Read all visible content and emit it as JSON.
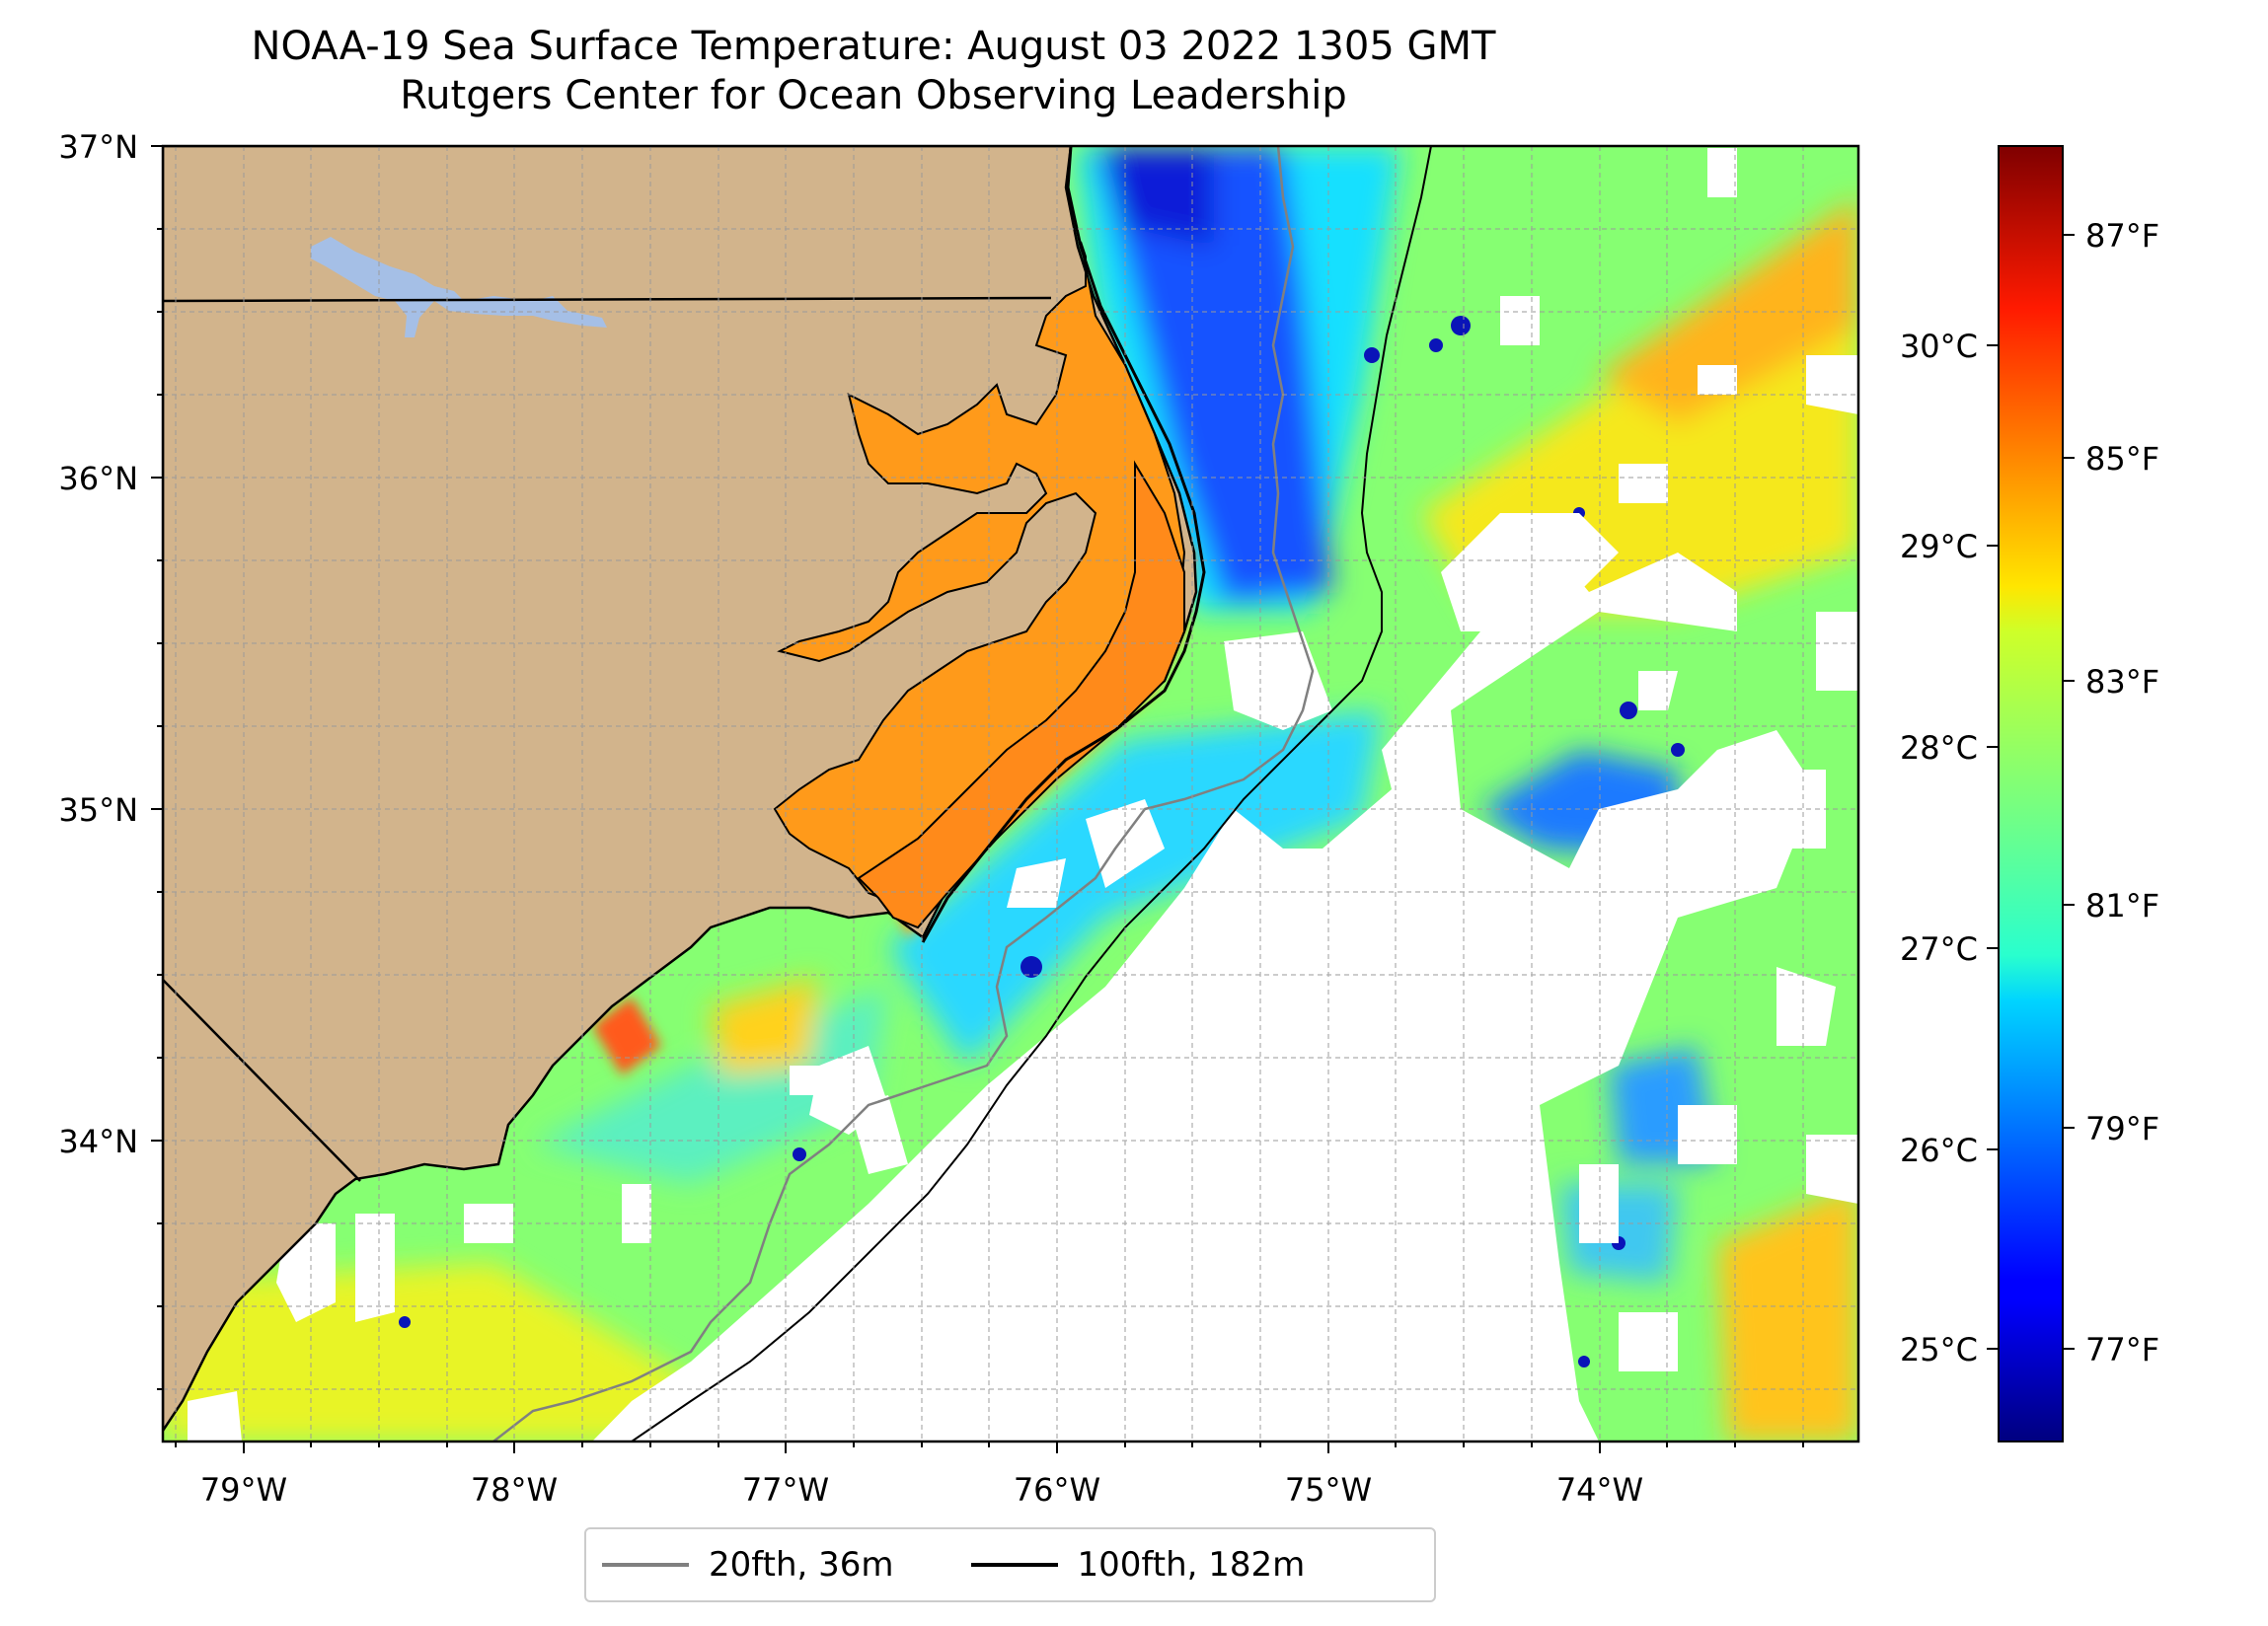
{
  "title": {
    "line1": "NOAA-19 Sea Surface Temperature: August 03 2022 1305 GMT",
    "line2": "Rutgers Center for Ocean Observing Leadership"
  },
  "map": {
    "lon_range": [
      -79.3,
      -73.1
    ],
    "lat_range": [
      33.1,
      37.0
    ],
    "x_ticks": [
      "79°W",
      "78°W",
      "77°W",
      "76°W",
      "75°W",
      "74°W"
    ],
    "y_ticks": [
      "37°N",
      "36°N",
      "35°N",
      "34°N"
    ],
    "gridlines": true,
    "colors": {
      "land": "#d2b48c",
      "lakes": "#a5bfe6",
      "no_data": "#ffffff"
    }
  },
  "colorbar": {
    "colormap": "jet",
    "range_c": [
      24.6,
      31.0
    ],
    "celsius_ticks": [
      "30°C",
      "29°C",
      "28°C",
      "27°C",
      "26°C",
      "25°C"
    ],
    "fahrenheit_ticks": [
      "87°F",
      "85°F",
      "83°F",
      "81°F",
      "79°F",
      "77°F"
    ]
  },
  "legend": {
    "items": [
      {
        "label": "20fth, 36m",
        "color": "#808080"
      },
      {
        "label": "100fth, 182m",
        "color": "#000000"
      }
    ]
  }
}
